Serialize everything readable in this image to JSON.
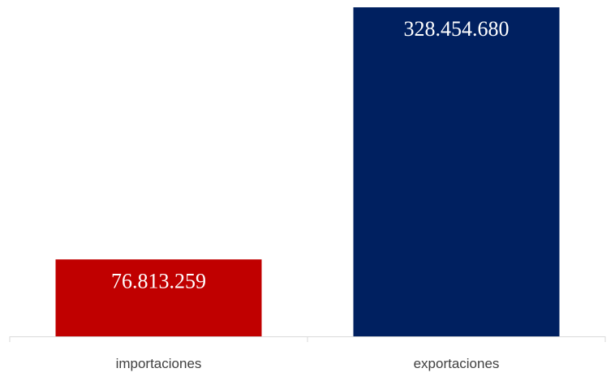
{
  "chart_data": {
    "type": "bar",
    "title": "",
    "xlabel": "",
    "ylabel": "",
    "categories": [
      "importaciones",
      "exportaciones"
    ],
    "values": [
      76813259,
      328454680
    ],
    "value_labels": [
      "76.813.259",
      "328.454.680"
    ],
    "bar_colors": [
      "#c00000",
      "#002060"
    ],
    "value_label_color": "#ffffff",
    "axis_color": "#d9d9d9",
    "category_label_color": "#404040",
    "ylim": [
      0,
      328454680
    ],
    "grid": false,
    "legend": "none"
  }
}
